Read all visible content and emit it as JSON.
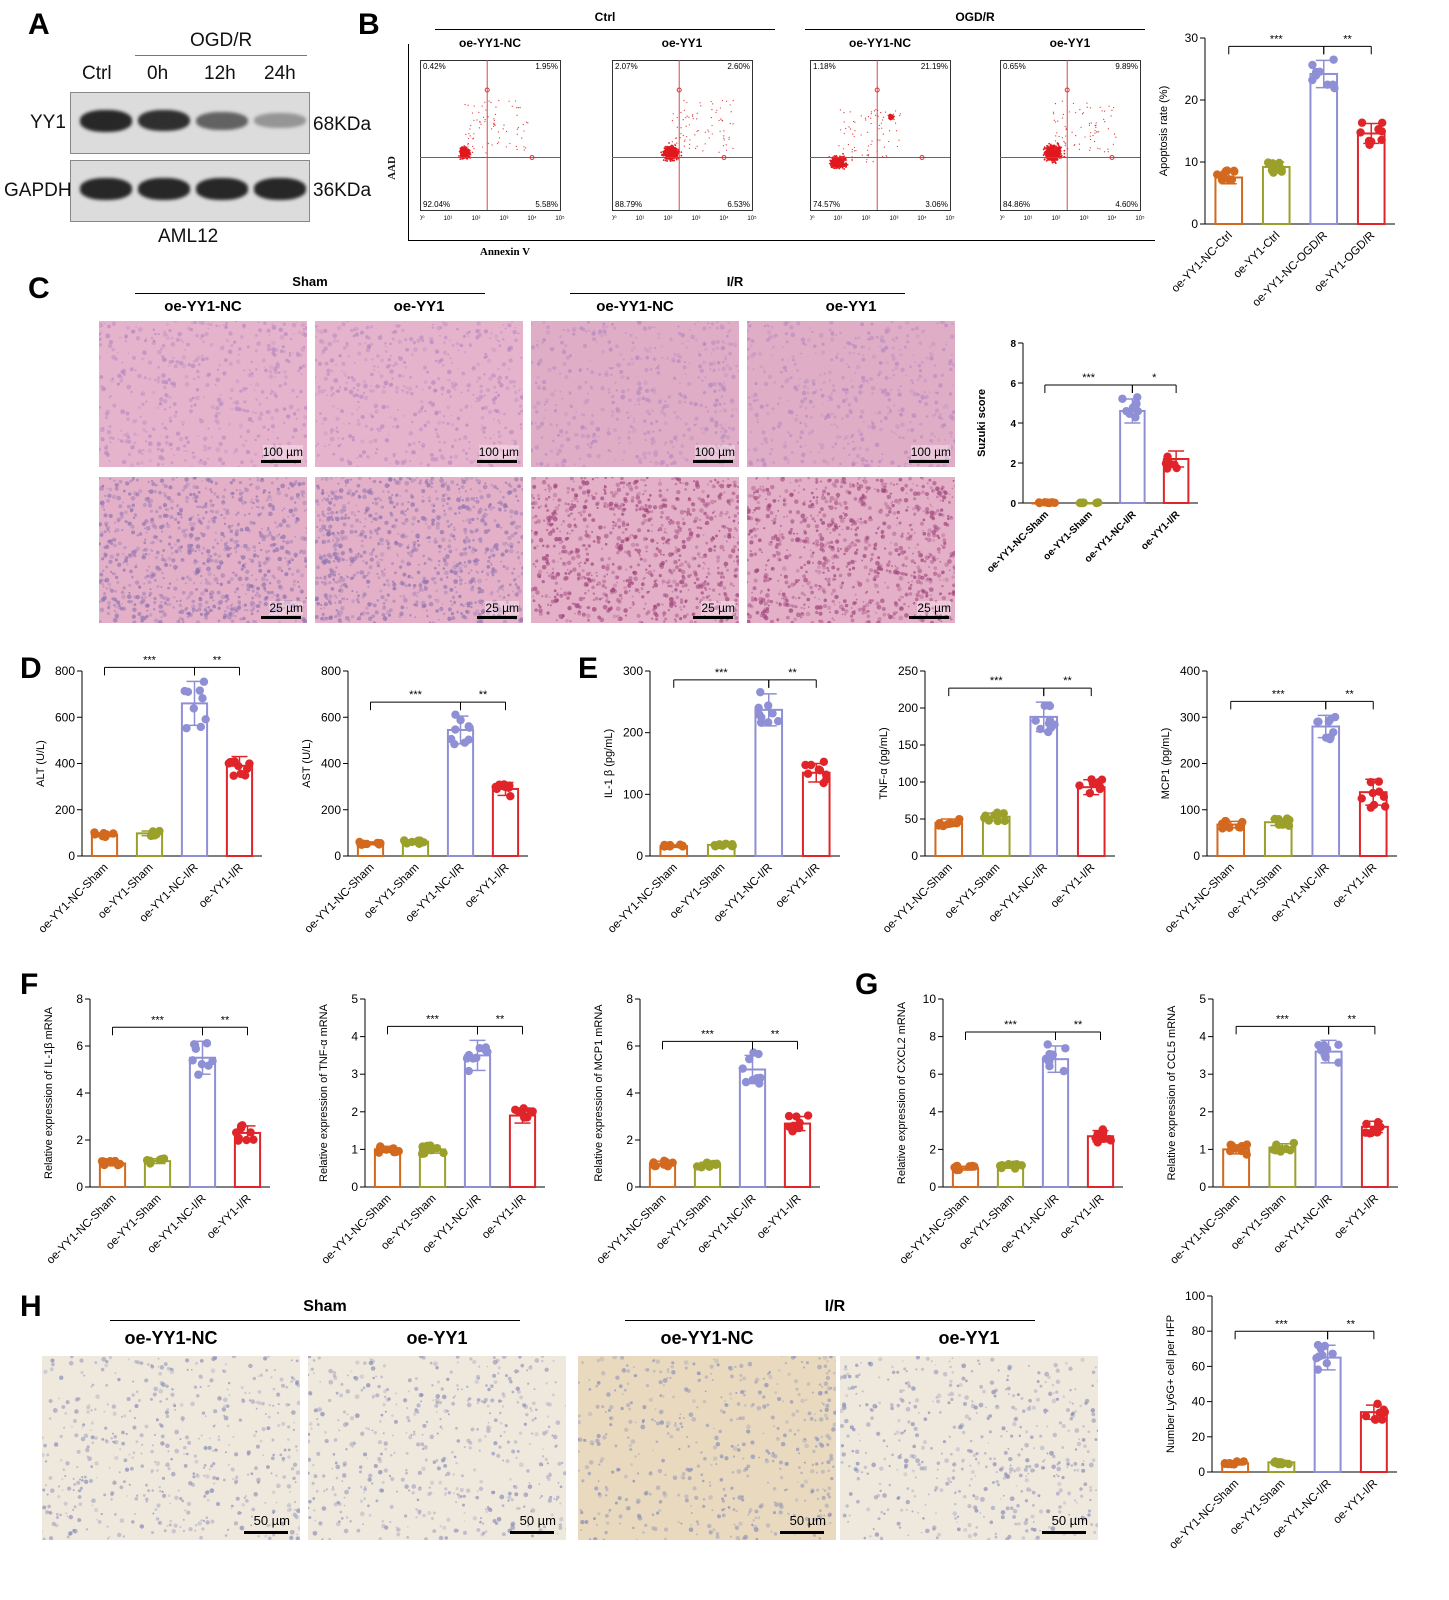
{
  "panel_labels": {
    "A": "A",
    "B": "B",
    "C": "C",
    "D": "D",
    "E": "E",
    "F": "F",
    "G": "G",
    "H": "H"
  },
  "western_blot": {
    "treatment": "OGD/R",
    "lanes": [
      "Ctrl",
      "0h",
      "12h",
      "24h"
    ],
    "proteins": [
      {
        "name": "YY1",
        "size": "68KDa",
        "intensities": [
          0.95,
          0.9,
          0.6,
          0.3
        ]
      },
      {
        "name": "GAPDH",
        "size": "36KDa",
        "intensities": [
          0.95,
          0.95,
          0.95,
          0.95
        ]
      }
    ],
    "cell_line": "AML12"
  },
  "flow": {
    "groups": [
      {
        "title": "Ctrl"
      },
      {
        "title": "OGD/R"
      }
    ],
    "plots": [
      {
        "title": "oe-YY1-NC",
        "q": [
          "0.42%",
          "1.95%",
          "92.04%",
          "5.58%"
        ]
      },
      {
        "title": "oe-YY1",
        "q": [
          "2.07%",
          "2.60%",
          "88.79%",
          "6.53%"
        ]
      },
      {
        "title": "oe-YY1-NC",
        "q": [
          "1.18%",
          "21.19%",
          "74.57%",
          "3.06%"
        ]
      },
      {
        "title": "oe-YY1",
        "q": [
          "0.65%",
          "9.89%",
          "84.86%",
          "4.60%"
        ]
      }
    ],
    "xlabel": "Annexin V",
    "ylabel": "AAD",
    "ticks": [
      "10⁰",
      "10¹",
      "10²",
      "10³",
      "10⁴",
      "10⁵"
    ]
  },
  "histology_C": {
    "groups": [
      {
        "title": "Sham"
      },
      {
        "title": "I/R"
      }
    ],
    "columns": [
      "oe-YY1-NC",
      "oe-YY1",
      "oe-YY1-NC",
      "oe-YY1"
    ],
    "scale_top": "100 µm",
    "scale_bottom": "25 µm"
  },
  "ihc_H": {
    "groups": [
      {
        "title": "Sham"
      },
      {
        "title": "I/R"
      }
    ],
    "columns": [
      "oe-YY1-NC",
      "oe-YY1",
      "oe-YY1-NC",
      "oe-YY1"
    ],
    "scale": "50 µm"
  },
  "colors": {
    "orange": "#d2691e",
    "olive": "#9aa02a",
    "lavender": "#8f8fd6",
    "red": "#e0252a"
  },
  "chart_data": [
    {
      "id": "B",
      "type": "bar",
      "categories": [
        "oe-YY1-NC-Ctrl",
        "oe-YY1-Ctrl",
        "oe-YY1-NC-OGD/R",
        "oe-YY1-OGD/R"
      ],
      "values": [
        7.5,
        9.2,
        24.2,
        14.6
      ],
      "sd": [
        1.0,
        0.8,
        2.2,
        1.6
      ],
      "ylabel": "Apoptosis rate (%)",
      "ylim": [
        0,
        30
      ],
      "yticks": [
        0,
        10,
        20,
        30
      ],
      "sig": [
        {
          "from": 0,
          "to": 2,
          "label": "***"
        },
        {
          "from": 2,
          "to": 3,
          "label": "**"
        }
      ]
    },
    {
      "id": "C",
      "type": "bar",
      "categories": [
        "oe-YY1-NC-Sham",
        "oe-YY1-Sham",
        "oe-YY1-NC-I/R",
        "oe-YY1-I/R"
      ],
      "values": [
        0,
        0,
        4.6,
        2.2
      ],
      "sd": [
        0,
        0,
        0.6,
        0.4
      ],
      "ylabel": "Suzuki score",
      "ylim": [
        0,
        8
      ],
      "yticks": [
        0,
        2,
        4,
        6,
        8
      ],
      "sig": [
        {
          "from": 0,
          "to": 2,
          "label": "***"
        },
        {
          "from": 2,
          "to": 3,
          "label": "*"
        }
      ]
    },
    {
      "id": "D1",
      "type": "bar",
      "categories": [
        "oe-YY1-NC-Sham",
        "oe-YY1-Sham",
        "oe-YY1-NC-I/R",
        "oe-YY1-I/R"
      ],
      "values": [
        92,
        98,
        660,
        390
      ],
      "sd": [
        8,
        10,
        95,
        40
      ],
      "ylabel": "ALT (U/L)",
      "ylim": [
        0,
        800
      ],
      "yticks": [
        0,
        200,
        400,
        600,
        800
      ],
      "sig": [
        {
          "from": 0,
          "to": 2,
          "label": "***"
        },
        {
          "from": 2,
          "to": 3,
          "label": "**"
        }
      ]
    },
    {
      "id": "D2",
      "type": "bar",
      "categories": [
        "oe-YY1-NC-Sham",
        "oe-YY1-Sham",
        "oe-YY1-NC-I/R",
        "oe-YY1-I/R"
      ],
      "values": [
        55,
        62,
        545,
        290
      ],
      "sd": [
        6,
        8,
        60,
        28
      ],
      "ylabel": "AST (U/L)",
      "ylim": [
        0,
        800
      ],
      "yticks": [
        0,
        200,
        400,
        600,
        800
      ],
      "sig": [
        {
          "from": 0,
          "to": 2,
          "label": "***"
        },
        {
          "from": 2,
          "to": 3,
          "label": "**"
        }
      ]
    },
    {
      "id": "E1",
      "type": "bar",
      "categories": [
        "oe-YY1-NC-Sham",
        "oe-YY1-Sham",
        "oe-YY1-NC-I/R",
        "oe-YY1-I/R"
      ],
      "values": [
        16,
        18,
        237,
        135
      ],
      "sd": [
        2,
        2,
        26,
        15
      ],
      "ylabel": "IL-1 β (pg/mL)",
      "ylim": [
        0,
        300
      ],
      "yticks": [
        0,
        100,
        200,
        300
      ],
      "sig": [
        {
          "from": 0,
          "to": 2,
          "label": "***"
        },
        {
          "from": 2,
          "to": 3,
          "label": "**"
        }
      ]
    },
    {
      "id": "E2",
      "type": "bar",
      "categories": [
        "oe-YY1-NC-Sham",
        "oe-YY1-Sham",
        "oe-YY1-NC-I/R",
        "oe-YY1-I/R"
      ],
      "values": [
        45,
        53,
        188,
        93
      ],
      "sd": [
        5,
        5,
        20,
        10
      ],
      "ylabel": "TNF-α (pg/mL)",
      "ylim": [
        0,
        250
      ],
      "yticks": [
        0,
        50,
        100,
        150,
        200,
        250
      ],
      "sig": [
        {
          "from": 0,
          "to": 2,
          "label": "***"
        },
        {
          "from": 2,
          "to": 3,
          "label": "**"
        }
      ]
    },
    {
      "id": "E3",
      "type": "bar",
      "categories": [
        "oe-YY1-NC-Sham",
        "oe-YY1-Sham",
        "oe-YY1-NC-I/R",
        "oe-YY1-I/R"
      ],
      "values": [
        68,
        73,
        280,
        138
      ],
      "sd": [
        7,
        7,
        24,
        28
      ],
      "ylabel": "MCP1 (pg/mL)",
      "ylim": [
        0,
        400
      ],
      "yticks": [
        0,
        100,
        200,
        300,
        400
      ],
      "sig": [
        {
          "from": 0,
          "to": 2,
          "label": "***"
        },
        {
          "from": 2,
          "to": 3,
          "label": "**"
        }
      ]
    },
    {
      "id": "F1",
      "type": "bar",
      "categories": [
        "oe-YY1-NC-Sham",
        "oe-YY1-Sham",
        "oe-YY1-NC-I/R",
        "oe-YY1-I/R"
      ],
      "values": [
        1.0,
        1.1,
        5.5,
        2.3
      ],
      "sd": [
        0.1,
        0.1,
        0.7,
        0.3
      ],
      "ylabel": "Relative expression of IL-1β mRNA",
      "ylim": [
        0,
        8
      ],
      "yticks": [
        0,
        2,
        4,
        6,
        8
      ],
      "sig": [
        {
          "from": 0,
          "to": 2,
          "label": "***"
        },
        {
          "from": 2,
          "to": 3,
          "label": "**"
        }
      ]
    },
    {
      "id": "F2",
      "type": "bar",
      "categories": [
        "oe-YY1-NC-Sham",
        "oe-YY1-Sham",
        "oe-YY1-NC-I/R",
        "oe-YY1-I/R"
      ],
      "values": [
        1.0,
        1.0,
        3.5,
        1.9
      ],
      "sd": [
        0.08,
        0.1,
        0.4,
        0.2
      ],
      "ylabel": "Relative expression of TNF-α mRNA",
      "ylim": [
        0,
        5
      ],
      "yticks": [
        0,
        1,
        2,
        3,
        4,
        5
      ],
      "sig": [
        {
          "from": 0,
          "to": 2,
          "label": "***"
        },
        {
          "from": 2,
          "to": 3,
          "label": "**"
        }
      ]
    },
    {
      "id": "F3",
      "type": "bar",
      "categories": [
        "oe-YY1-NC-Sham",
        "oe-YY1-Sham",
        "oe-YY1-NC-I/R",
        "oe-YY1-I/R"
      ],
      "values": [
        1.0,
        0.95,
        5.0,
        2.7
      ],
      "sd": [
        0.1,
        0.1,
        0.6,
        0.3
      ],
      "ylabel": "Relative expression of MCP1 mRNA",
      "ylim": [
        0,
        8
      ],
      "yticks": [
        0,
        2,
        4,
        6,
        8
      ],
      "sig": [
        {
          "from": 0,
          "to": 2,
          "label": "***"
        },
        {
          "from": 2,
          "to": 3,
          "label": "**"
        }
      ]
    },
    {
      "id": "G1",
      "type": "bar",
      "categories": [
        "oe-YY1-NC-Sham",
        "oe-YY1-Sham",
        "oe-YY1-NC-I/R",
        "oe-YY1-I/R"
      ],
      "values": [
        1.0,
        1.1,
        6.8,
        2.7
      ],
      "sd": [
        0.1,
        0.1,
        0.7,
        0.3
      ],
      "ylabel": "Relative expression of CXCL2 mRNA",
      "ylim": [
        0,
        10
      ],
      "yticks": [
        0,
        2,
        4,
        6,
        8,
        10
      ],
      "sig": [
        {
          "from": 0,
          "to": 2,
          "label": "***"
        },
        {
          "from": 2,
          "to": 3,
          "label": "**"
        }
      ]
    },
    {
      "id": "G2",
      "type": "bar",
      "categories": [
        "oe-YY1-NC-Sham",
        "oe-YY1-Sham",
        "oe-YY1-NC-I/R",
        "oe-YY1-I/R"
      ],
      "values": [
        1.0,
        1.05,
        3.6,
        1.6
      ],
      "sd": [
        0.12,
        0.1,
        0.3,
        0.15
      ],
      "ylabel": "Relative expression of CCL5 mRNA",
      "ylim": [
        0,
        5
      ],
      "yticks": [
        0,
        1,
        2,
        3,
        4,
        5
      ],
      "sig": [
        {
          "from": 0,
          "to": 2,
          "label": "***"
        },
        {
          "from": 2,
          "to": 3,
          "label": "**"
        }
      ]
    },
    {
      "id": "H",
      "type": "bar",
      "categories": [
        "oe-YY1-NC-Sham",
        "oe-YY1-Sham",
        "oe-YY1-NC-I/R",
        "oe-YY1-I/R"
      ],
      "values": [
        5,
        5.5,
        65,
        34
      ],
      "sd": [
        1,
        1,
        7,
        4
      ],
      "ylabel": "Number Ly6G+ cell per HFP",
      "ylim": [
        0,
        100
      ],
      "yticks": [
        0,
        20,
        40,
        60,
        80,
        100
      ],
      "sig": [
        {
          "from": 0,
          "to": 2,
          "label": "***"
        },
        {
          "from": 2,
          "to": 3,
          "label": "**"
        }
      ]
    }
  ]
}
